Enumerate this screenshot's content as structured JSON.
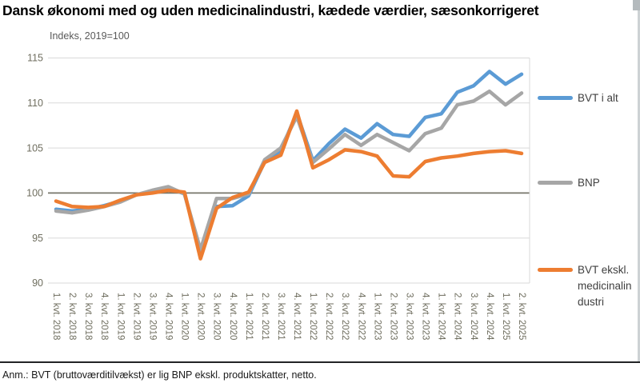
{
  "title": "Dansk økonomi med og uden medicinalindustri, kædede værdier, sæsonkorrigeret",
  "subtitle": "Indeks, 2019=100",
  "footnote": "Anm.: BVT (bruttoværditilvækst) er lig BNP ekskl. produktskatter, netto.",
  "colors": {
    "grid": "#D9D9D9",
    "baseline": "#77766A",
    "axis_text": "#6F6E5F",
    "legend_text": "#3F3F3F",
    "series_blue": "#5B9BD5",
    "series_gray": "#A6A6A6",
    "series_orange": "#ED7D31"
  },
  "chart_data": {
    "type": "line",
    "title": "Dansk økonomi med og uden medicinalindustri, kædede værdier, sæsonkorrigeret",
    "ylabel": "Indeks, 2019=100",
    "xlabel": "",
    "grid": true,
    "legend_position": "right",
    "ylim": [
      90,
      115
    ],
    "yticks": [
      90,
      95,
      100,
      105,
      110,
      115
    ],
    "baseline": 100,
    "categories": [
      "1. kvt. 2018",
      "2. kvt. 2018",
      "3. kvt. 2018",
      "4. kvt. 2018",
      "1. kvt. 2019",
      "2. kvt. 2019",
      "3. kvt. 2019",
      "4. kvt. 2019",
      "1. kvt. 2020",
      "2. kvt. 2020",
      "3. kvt. 2020",
      "4. kvt. 2020",
      "1. kvt. 2021",
      "2. kvt. 2021",
      "3. kvt. 2021",
      "4. kvt. 2021",
      "1. kvt. 2022",
      "2. kvt. 2022",
      "3. kvt. 2022",
      "4. kvt. 2022",
      "1. kvt. 2023",
      "2. kvt. 2023",
      "3. kvt. 2023",
      "4. kvt. 2023",
      "1. kvt. 2024",
      "2. kvt. 2024",
      "3. kvt. 2024",
      "4. kvt. 2024",
      "1. kvt. 2025",
      "2. kvt. 2025"
    ],
    "series": [
      {
        "name": "BVT i alt",
        "color": "#5B9BD5",
        "values": [
          98.2,
          98.0,
          98.2,
          98.6,
          99.1,
          99.8,
          100.2,
          100.6,
          99.9,
          93.5,
          98.5,
          98.6,
          99.7,
          103.5,
          104.7,
          108.9,
          103.6,
          105.5,
          107.1,
          106.1,
          107.7,
          106.5,
          106.3,
          108.4,
          108.8,
          111.2,
          111.9,
          113.5,
          112.1,
          113.2
        ]
      },
      {
        "name": "BNP",
        "color": "#A6A6A6",
        "values": [
          98.0,
          97.8,
          98.1,
          98.5,
          99.0,
          99.8,
          100.3,
          100.7,
          99.9,
          93.7,
          99.4,
          99.4,
          99.9,
          103.7,
          105.0,
          108.5,
          103.4,
          104.9,
          106.5,
          105.3,
          106.5,
          105.6,
          104.7,
          106.6,
          107.2,
          109.8,
          110.2,
          111.3,
          109.8,
          111.1
        ]
      },
      {
        "name": "BVT ekskl. medicinalindustri",
        "color": "#ED7D31",
        "values": [
          99.1,
          98.5,
          98.4,
          98.5,
          99.2,
          99.8,
          100.0,
          100.3,
          100.1,
          92.7,
          98.3,
          99.5,
          100.1,
          103.4,
          104.2,
          109.1,
          102.8,
          103.7,
          104.8,
          104.6,
          104.1,
          101.9,
          101.8,
          103.5,
          103.9,
          104.1,
          104.4,
          104.6,
          104.7,
          104.4
        ]
      }
    ]
  },
  "legend": {
    "items": [
      {
        "lines": [
          "BVT i alt"
        ]
      },
      {
        "lines": [
          "BNP"
        ]
      },
      {
        "lines": [
          "BVT ekskl.",
          "medicinalin",
          "dustri"
        ]
      }
    ]
  }
}
